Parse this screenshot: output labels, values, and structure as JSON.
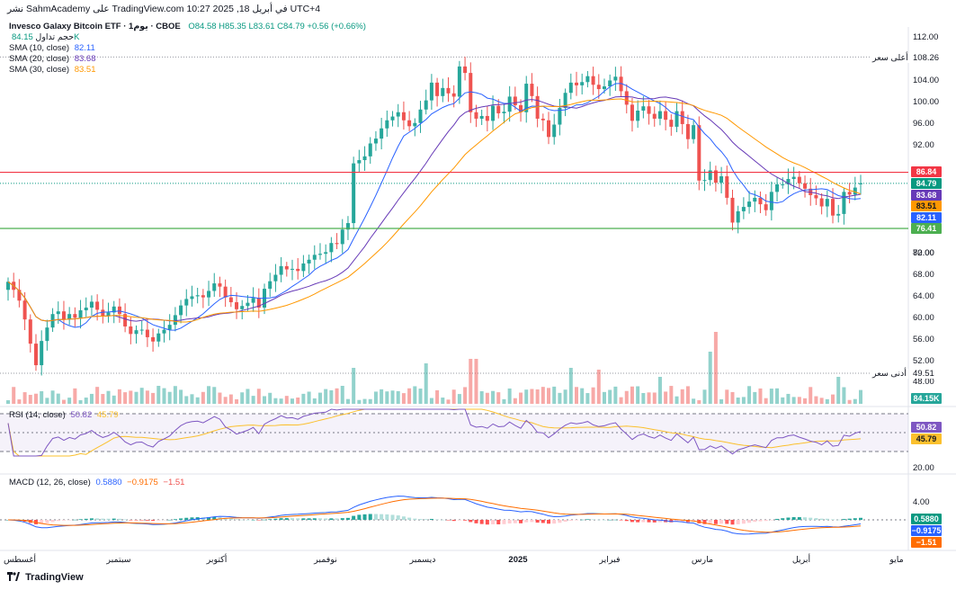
{
  "header": {
    "published": "نشر SahmAcademy على TradingView.com في أبريل 18, 2025 10:27 UTC+4"
  },
  "legend": {
    "symbol": "Invesco Galaxy Bitcoin ETF · يوم1 · CBOE",
    "ohlc": "O84.58 H85.35 L83.61 C84.79 +0.56 (+0.66%)",
    "volume_label": "حجم تداول",
    "volume_value": "84.15K",
    "sma10_label": "SMA (10, close)",
    "sma10_value": "82.11",
    "sma20_label": "SMA (20, close)",
    "sma20_value": "83.68",
    "sma30_label": "SMA (30, close)",
    "sma30_value": "83.51",
    "rsi_label": "RSI (14, close)",
    "rsi_value": "50.82",
    "rsi_ma_value": "45.79",
    "macd_label": "MACD (12, 26, close)",
    "macd_value": "0.5880",
    "macd_signal": "−0.9175",
    "macd_hist": "−1.51"
  },
  "price_axis": {
    "ticks": [
      "112.00",
      "104.00",
      "100.00",
      "96.00",
      "92.00",
      "80.00",
      "72.00",
      "68.00",
      "64.00",
      "60.00",
      "56.00",
      "52.00",
      "48.00"
    ],
    "labels": {
      "resistance": "86.84",
      "last": "84.79",
      "sma20": "83.68",
      "sma30": "83.51",
      "sma10": "82.11",
      "support": "76.41",
      "high_value": "108.26",
      "high_text": "أعلى سعر",
      "low_value": "49.51",
      "low_text": "أدنى سعر",
      "volume": "84.15K",
      "rsi_level": "20.00",
      "rsi": "50.82",
      "rsi_ma": "45.79",
      "macd_level": "4.00",
      "macd": "0.5880",
      "macd_signal": "−0.9175",
      "macd_hist": "−1.51"
    }
  },
  "time_axis": [
    "أغسطس",
    "سبتمبر",
    "أكتوبر",
    "نوفمبر",
    "ديسمبر",
    "2025",
    "فبراير",
    "مارس",
    "أبريل",
    "مايو"
  ],
  "brand": "TradingView",
  "colors": {
    "up": "#26a69a",
    "down": "#ef5350",
    "sma10": "#2962ff",
    "sma20": "#673ab7",
    "sma30": "#ff9800",
    "resistance": "#f23645",
    "support": "#4caf50",
    "rsi_line": "#7e57c2",
    "rsi_ma": "#fbc02d",
    "macd": "#2962ff",
    "signal": "#ff6d00"
  },
  "chart_data": {
    "type": "candlestick",
    "price_range": [
      46,
      114
    ],
    "resistance": 86.84,
    "support": 76.41,
    "highest": 108.26,
    "lowest": 49.51,
    "close": [
      66.5,
      65.0,
      63.0,
      59.5,
      55.0,
      51.0,
      55.5,
      58.0,
      60.5,
      61.0,
      59.5,
      60.5,
      59.8,
      61.2,
      61.7,
      62.8,
      61.3,
      60.2,
      60.8,
      61.9,
      60.5,
      58.2,
      56.8,
      57.5,
      57.6,
      56.2,
      55.4,
      56.9,
      57.6,
      58.5,
      60.3,
      62.1,
      63.3,
      63.8,
      64.0,
      63.6,
      64.8,
      66.2,
      65.6,
      63.6,
      62.7,
      61.4,
      62.0,
      62.6,
      63.5,
      61.7,
      65.2,
      66.6,
      67.8,
      69.4,
      68.8,
      68.9,
      68.5,
      69.9,
      70.6,
      71.5,
      71.7,
      72.0,
      73.7,
      73.5,
      76.2,
      77.4,
      88.5,
      89.1,
      89.8,
      92.2,
      93.1,
      95.0,
      96.5,
      97.2,
      98.0,
      96.5,
      95.4,
      96.0,
      98.5,
      100.2,
      103.5,
      101.0,
      102.5,
      101.5,
      100.9,
      106.5,
      105.3,
      98.0,
      96.8,
      97.3,
      96.4,
      99.2,
      97.8,
      98.1,
      100.9,
      99.3,
      98.0,
      103.3,
      101.0,
      96.8,
      96.5,
      93.4,
      95.7,
      98.8,
      101.6,
      103.5,
      103.0,
      103.6,
      104.7,
      103.1,
      102.3,
      102.8,
      103.9,
      104.6,
      101.9,
      99.4,
      96.4,
      98.3,
      99.1,
      97.7,
      96.8,
      98.2,
      96.6,
      95.3,
      98.2,
      95.8,
      93.0,
      95.6,
      85.3,
      85.4,
      87.2,
      84.9,
      86.1,
      82.1,
      77.5,
      79.6,
      80.4,
      81.4,
      82.1,
      80.9,
      79.8,
      83.2,
      84.6,
      84.6,
      85.6,
      86.0,
      84.8,
      83.8,
      82.6,
      82.0,
      80.5,
      81.9,
      78.8,
      79.1,
      83.2,
      82.7,
      84.0,
      84.8
    ],
    "open": [
      65.0,
      66.5,
      65.0,
      63.0,
      59.5,
      55.0,
      51.0,
      55.5,
      58.0,
      60.5,
      61.0,
      59.5,
      60.5,
      59.8,
      61.2,
      61.7,
      62.8,
      61.3,
      60.2,
      60.8,
      61.9,
      60.5,
      58.2,
      56.8,
      57.5,
      57.6,
      56.2,
      55.4,
      56.9,
      57.6,
      58.5,
      60.3,
      62.1,
      63.3,
      63.8,
      64.0,
      63.6,
      64.8,
      66.2,
      65.6,
      63.6,
      62.7,
      61.4,
      62.0,
      62.6,
      63.5,
      61.7,
      65.2,
      66.6,
      67.8,
      69.4,
      68.8,
      68.9,
      68.5,
      69.9,
      70.6,
      71.5,
      71.7,
      72.0,
      73.7,
      73.5,
      76.2,
      77.4,
      88.5,
      89.1,
      89.8,
      92.2,
      93.1,
      95.0,
      96.5,
      97.2,
      98.0,
      96.5,
      95.4,
      96.0,
      98.5,
      100.2,
      103.5,
      101.0,
      102.5,
      101.5,
      100.9,
      106.5,
      105.3,
      98.0,
      96.8,
      97.3,
      96.4,
      99.2,
      97.8,
      98.1,
      100.9,
      99.3,
      98.0,
      103.3,
      101.0,
      96.8,
      96.5,
      93.4,
      95.7,
      98.8,
      101.6,
      103.5,
      103.0,
      103.6,
      104.7,
      103.1,
      102.3,
      102.8,
      103.9,
      104.6,
      101.9,
      99.4,
      96.4,
      98.3,
      99.1,
      97.7,
      96.8,
      98.2,
      96.6,
      95.3,
      98.2,
      95.8,
      93.0,
      95.6,
      85.3,
      85.4,
      87.2,
      84.9,
      86.1,
      82.1,
      77.5,
      79.6,
      80.4,
      81.4,
      82.1,
      80.9,
      79.8,
      83.2,
      84.6,
      84.6,
      85.6,
      86.0,
      84.8,
      83.8,
      82.6,
      82.0,
      80.5,
      81.9,
      78.8,
      79.1,
      83.2,
      82.7,
      84.6
    ],
    "sma10_last": 82.11,
    "sma20_last": 83.68,
    "sma30_last": 83.51,
    "rsi_last": 50.82,
    "rsi_ma_last": 45.79,
    "macd_last": 0.588,
    "signal_last": -0.9175,
    "hist_last": -1.51
  }
}
